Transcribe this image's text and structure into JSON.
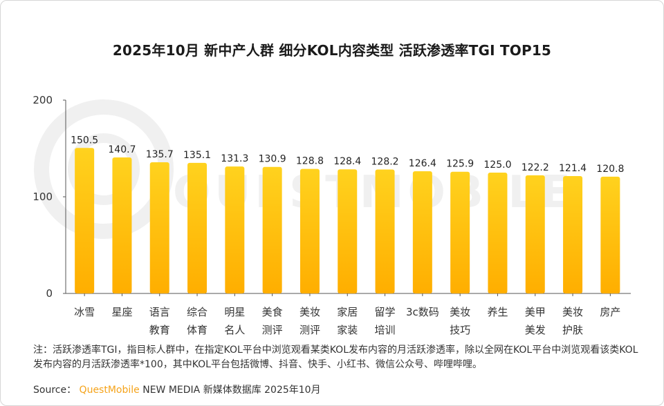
{
  "title": "2025年10月 新中产人群 细分KOL内容类型 活跃渗透率TGI TOP15",
  "footer": {
    "note": "注：活跃渗透率TGI，指目标人群中，在指定KOL平台中浏览观看某类KOL发布内容的月活跃渗透率，除以全网在KOL平台中浏览观看该类KOL发布内容的月活跃渗透率*100，其中KOL平台包括微博、抖音、快手、小红书、微信公众号、哔哩哔哩。",
    "source_label": "Source：",
    "source_brand": "QuestMobile",
    "source_rest": "NEW MEDIA 新媒体数据库 2025年10月"
  },
  "colors": {
    "bar_top": "#ffd21e",
    "bar_bottom": "#ffae00",
    "brand": "#f5a31a",
    "watermark": "#f0f0f0"
  },
  "watermark_text": "QUESTMOBILE",
  "chart_data": {
    "type": "bar",
    "title": "2025年10月 新中产人群 细分KOL内容类型 活跃渗透率TGI TOP15",
    "categories": [
      [
        "冰雪"
      ],
      [
        "星座"
      ],
      [
        "语言",
        "教育"
      ],
      [
        "综合",
        "体育"
      ],
      [
        "明星",
        "名人"
      ],
      [
        "美食",
        "测评"
      ],
      [
        "美妆",
        "测评"
      ],
      [
        "家居",
        "家装"
      ],
      [
        "留学",
        "培训"
      ],
      [
        "3c数码"
      ],
      [
        "美妆",
        "技巧"
      ],
      [
        "养生"
      ],
      [
        "美甲",
        "美发"
      ],
      [
        "美妆",
        "护肤"
      ],
      [
        "房产"
      ]
    ],
    "values": [
      150.5,
      140.7,
      135.7,
      135.1,
      131.3,
      130.9,
      128.8,
      128.4,
      128.2,
      126.4,
      125.9,
      125.0,
      122.2,
      121.4,
      120.8
    ],
    "value_labels": [
      "150.5",
      "140.7",
      "135.7",
      "135.1",
      "131.3",
      "130.9",
      "128.8",
      "128.4",
      "128.2",
      "126.4",
      "125.9",
      "125.0",
      "122.2",
      "121.4",
      "120.8"
    ],
    "ylim": [
      0,
      200
    ],
    "yticks": [
      0,
      100,
      200
    ],
    "grid": false,
    "xlabel": "",
    "ylabel": ""
  }
}
